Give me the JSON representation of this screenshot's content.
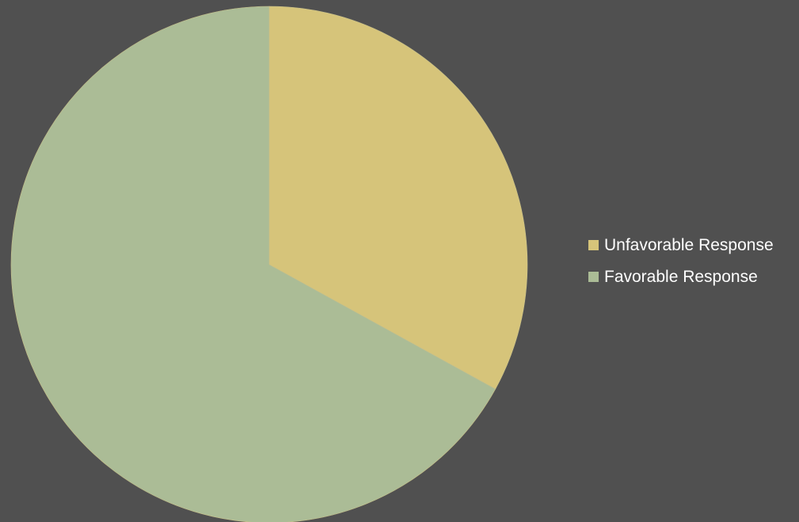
{
  "chart_data": {
    "type": "pie",
    "title": "",
    "categories": [
      "Unfavorable Response",
      "Favorable Response"
    ],
    "values": [
      33,
      67
    ],
    "colors": [
      "#d6c47a",
      "#abbc96"
    ],
    "start_angle_deg": 0,
    "direction": "clockwise",
    "legend_position": "right"
  },
  "background_color": "#505050",
  "legend": {
    "items": [
      {
        "label": "Unfavorable Response",
        "color": "#d6c47a"
      },
      {
        "label": "Favorable Response",
        "color": "#abbc96"
      }
    ]
  }
}
